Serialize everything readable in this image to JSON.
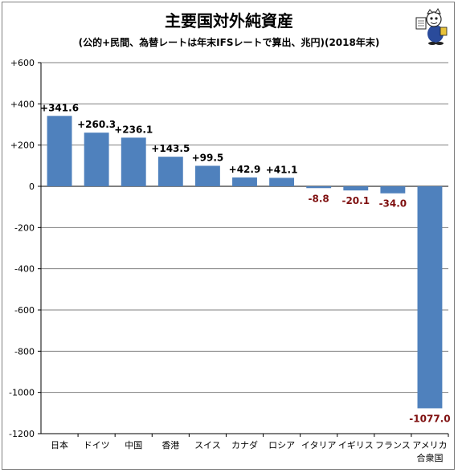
{
  "title": "主要国対外純資産",
  "subtitle": "(公的+民間、為替レートは年末IFSレートで算出、兆円)(2018年末)",
  "colors": {
    "bar": "#4f81bd",
    "positive_label": "#000000",
    "negative_label": "#7f1010",
    "grid": "#7f7f7f"
  },
  "chart_data": {
    "type": "bar",
    "categories": [
      "日本",
      "ドイツ",
      "中国",
      "香港",
      "スイス",
      "カナダ",
      "ロシア",
      "イタリア",
      "イギリス",
      "フランス",
      "アメリカ合衆国"
    ],
    "category_lines": [
      [
        "日本"
      ],
      [
        "ドイツ"
      ],
      [
        "中国"
      ],
      [
        "香港"
      ],
      [
        "スイス"
      ],
      [
        "カナダ"
      ],
      [
        "ロシア"
      ],
      [
        "イタリア"
      ],
      [
        "イギリス"
      ],
      [
        "フランス"
      ],
      [
        "アメリカ",
        "合衆国"
      ]
    ],
    "values": [
      341.6,
      260.3,
      236.1,
      143.5,
      99.5,
      42.9,
      41.1,
      -8.8,
      -20.1,
      -34.0,
      -1077.0
    ],
    "value_labels": [
      "+341.6",
      "+260.3",
      "+236.1",
      "+143.5",
      "+99.5",
      "+42.9",
      "+41.1",
      "-8.8",
      "-20.1",
      "-34.0",
      "-1077.0"
    ],
    "ylim": [
      -1200,
      600
    ],
    "yticks": [
      600,
      400,
      200,
      0,
      -200,
      -400,
      -600,
      -800,
      -1000,
      -1200
    ],
    "ytick_labels": [
      "+600",
      "+400",
      "+200",
      "0",
      "-200",
      "-400",
      "-600",
      "-800",
      "-1000",
      "-1200"
    ],
    "grid": true,
    "legend": "none"
  }
}
